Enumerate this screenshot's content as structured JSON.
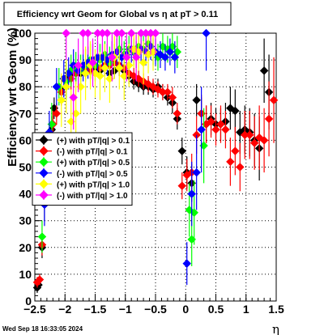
{
  "chart_data": {
    "type": "scatter",
    "title": "Efficiency wrt Geom for Global vs η at pT > 0.11",
    "ylabel": "Efficiency wrt Geom (%)",
    "xlabel": "η",
    "xlim": [
      -2.5,
      1.5
    ],
    "ylim": [
      0,
      100
    ],
    "xticks": [
      "−2.5",
      "−2",
      "−1.5",
      "−1",
      "−0.5",
      "0",
      "0.5",
      "1",
      "1.5"
    ],
    "yticks": [
      "0",
      "10",
      "20",
      "30",
      "40",
      "50",
      "60",
      "70",
      "80",
      "90",
      "100"
    ],
    "grid": true,
    "legend_position": "middle-left",
    "timestamp": "Wed Sep 18 16:33:05 2024",
    "series": [
      {
        "name": "(+) with pT/|q| > 0.1",
        "color": "#000000",
        "marker": "diamond",
        "points": [
          [
            -2.46,
            5,
            2
          ],
          [
            -2.44,
            6,
            2
          ],
          [
            -2.38,
            20,
            4
          ],
          [
            -2.34,
            36,
            6
          ],
          [
            -2.22,
            64,
            5
          ],
          [
            -2.18,
            72,
            4
          ],
          [
            -2.06,
            79,
            5
          ],
          [
            -1.98,
            83,
            4
          ],
          [
            -1.9,
            85,
            4
          ],
          [
            -1.82,
            86,
            3
          ],
          [
            -1.74,
            85,
            3
          ],
          [
            -1.66,
            87,
            3
          ],
          [
            -1.58,
            86,
            3
          ],
          [
            -1.5,
            87,
            3
          ],
          [
            -1.42,
            86,
            3
          ],
          [
            -1.34,
            87,
            3
          ],
          [
            -1.26,
            85,
            3
          ],
          [
            -1.18,
            86,
            3
          ],
          [
            -1.1,
            87,
            3
          ],
          [
            -1.02,
            86,
            3
          ],
          [
            -0.94,
            84,
            3
          ],
          [
            -0.86,
            82,
            3
          ],
          [
            -0.78,
            81,
            3
          ],
          [
            -0.7,
            80,
            3
          ],
          [
            -0.62,
            80,
            3
          ],
          [
            -0.54,
            79,
            3
          ],
          [
            -0.46,
            80,
            3
          ],
          [
            -0.38,
            78,
            3
          ],
          [
            -0.3,
            76,
            3
          ],
          [
            -0.22,
            74,
            4
          ],
          [
            -0.14,
            68,
            4
          ],
          [
            -0.06,
            56,
            5
          ],
          [
            0.02,
            48,
            6
          ],
          [
            0.1,
            44,
            7
          ],
          [
            0.18,
            75,
            6
          ],
          [
            0.26,
            70,
            6
          ],
          [
            0.34,
            66,
            7
          ],
          [
            0.42,
            68,
            6
          ],
          [
            0.5,
            66,
            6
          ],
          [
            0.58,
            66,
            6
          ],
          [
            0.66,
            67,
            7
          ],
          [
            0.74,
            72,
            8
          ],
          [
            0.82,
            71,
            8
          ],
          [
            0.9,
            63,
            8
          ],
          [
            0.98,
            64,
            9
          ],
          [
            1.06,
            63,
            9
          ],
          [
            1.14,
            60,
            10
          ],
          [
            1.22,
            57,
            12
          ],
          [
            1.3,
            86,
            12
          ],
          [
            1.38,
            78,
            14
          ]
        ]
      },
      {
        "name": "(-) with pT/|q| > 0.1",
        "color": "#ff0000",
        "marker": "diamond",
        "points": [
          [
            -2.46,
            7,
            2
          ],
          [
            -2.42,
            8,
            2
          ],
          [
            -2.38,
            21,
            4
          ],
          [
            -2.3,
            45,
            6
          ],
          [
            -2.2,
            66,
            5
          ],
          [
            -2.14,
            70,
            4
          ],
          [
            -2.06,
            78,
            5
          ],
          [
            -1.98,
            80,
            4
          ],
          [
            -1.9,
            83,
            4
          ],
          [
            -1.82,
            85,
            3
          ],
          [
            -1.74,
            86,
            3
          ],
          [
            -1.66,
            87,
            3
          ],
          [
            -1.58,
            86,
            3
          ],
          [
            -1.5,
            88,
            3
          ],
          [
            -1.42,
            87,
            3
          ],
          [
            -1.34,
            88,
            3
          ],
          [
            -1.26,
            88,
            3
          ],
          [
            -1.18,
            89,
            3
          ],
          [
            -1.1,
            88,
            3
          ],
          [
            -1.02,
            87,
            3
          ],
          [
            -0.94,
            85,
            3
          ],
          [
            -0.86,
            84,
            3
          ],
          [
            -0.78,
            83,
            3
          ],
          [
            -0.7,
            82,
            3
          ],
          [
            -0.62,
            81,
            3
          ],
          [
            -0.54,
            80,
            3
          ],
          [
            -0.46,
            79,
            3
          ],
          [
            -0.38,
            78,
            3
          ],
          [
            -0.3,
            78,
            3
          ],
          [
            -0.22,
            76,
            4
          ],
          [
            -0.14,
            70,
            4
          ],
          [
            -0.06,
            43,
            5
          ],
          [
            0.02,
            47,
            6
          ],
          [
            0.1,
            48,
            7
          ],
          [
            0.18,
            62,
            7
          ],
          [
            0.26,
            70,
            7
          ],
          [
            0.34,
            66,
            7
          ],
          [
            0.42,
            67,
            6
          ],
          [
            0.5,
            64,
            6
          ],
          [
            0.58,
            66,
            7
          ],
          [
            0.66,
            64,
            7
          ],
          [
            0.74,
            52,
            9
          ],
          [
            0.82,
            56,
            9
          ],
          [
            0.9,
            50,
            9
          ],
          [
            0.98,
            62,
            9
          ],
          [
            1.06,
            62,
            9
          ],
          [
            1.14,
            59,
            10
          ],
          [
            1.22,
            61,
            12
          ],
          [
            1.3,
            60,
            12
          ],
          [
            1.38,
            68,
            14
          ],
          [
            1.46,
            75,
            16
          ]
        ]
      },
      {
        "name": "(+) with pT/|q| > 0.5",
        "color": "#00ff00",
        "marker": "diamond",
        "points": [
          [
            -2.38,
            24,
            6
          ],
          [
            -2.22,
            66,
            8
          ],
          [
            -2.1,
            80,
            7
          ],
          [
            -1.98,
            82,
            7
          ],
          [
            -1.9,
            86,
            6
          ],
          [
            -1.82,
            87,
            6
          ],
          [
            -1.74,
            86,
            6
          ],
          [
            -1.66,
            88,
            6
          ],
          [
            -1.58,
            90,
            6
          ],
          [
            -1.5,
            88,
            6
          ],
          [
            -1.42,
            90,
            6
          ],
          [
            -1.34,
            92,
            5
          ],
          [
            -1.26,
            89,
            6
          ],
          [
            -1.18,
            91,
            5
          ],
          [
            -1.1,
            94,
            5
          ],
          [
            -1.02,
            92,
            5
          ],
          [
            -0.94,
            94,
            5
          ],
          [
            -0.86,
            93,
            5
          ],
          [
            -0.78,
            95,
            5
          ],
          [
            -0.7,
            94,
            5
          ],
          [
            -0.62,
            96,
            5
          ],
          [
            -0.54,
            93,
            5
          ],
          [
            -0.46,
            91,
            5
          ],
          [
            -0.38,
            95,
            5
          ],
          [
            -0.3,
            94,
            5
          ],
          [
            -0.22,
            95,
            5
          ],
          [
            -0.14,
            93,
            6
          ],
          [
            0.06,
            34,
            10
          ],
          [
            0.1,
            23,
            10
          ],
          [
            0.14,
            33,
            12
          ],
          [
            0.3,
            58,
            14
          ]
        ]
      },
      {
        "name": "(-) with pT/|q| > 0.5",
        "color": "#0000ff",
        "marker": "diamond",
        "points": [
          [
            -2.34,
            36,
            8
          ],
          [
            -2.26,
            63,
            8
          ],
          [
            -2.14,
            80,
            7
          ],
          [
            -2.02,
            83,
            7
          ],
          [
            -1.94,
            85,
            6
          ],
          [
            -1.86,
            88,
            6
          ],
          [
            -1.78,
            86,
            6
          ],
          [
            -1.7,
            88,
            6
          ],
          [
            -1.62,
            89,
            6
          ],
          [
            -1.54,
            90,
            6
          ],
          [
            -1.46,
            91,
            6
          ],
          [
            -1.38,
            91,
            5
          ],
          [
            -1.3,
            90,
            6
          ],
          [
            -1.22,
            92,
            5
          ],
          [
            -1.14,
            93,
            5
          ],
          [
            -1.06,
            91,
            5
          ],
          [
            -0.98,
            92,
            5
          ],
          [
            -0.9,
            94,
            5
          ],
          [
            -0.82,
            92,
            5
          ],
          [
            -0.74,
            94,
            5
          ],
          [
            -0.66,
            93,
            5
          ],
          [
            -0.58,
            95,
            5
          ],
          [
            -0.5,
            93,
            5
          ],
          [
            -0.42,
            92,
            5
          ],
          [
            -0.34,
            91,
            5
          ],
          [
            -0.26,
            93,
            5
          ],
          [
            -0.18,
            91,
            6
          ],
          [
            0.02,
            14,
            8
          ],
          [
            0.1,
            40,
            12
          ],
          [
            0.18,
            48,
            14
          ],
          [
            0.26,
            64,
            16
          ],
          [
            0.34,
            100,
            14
          ]
        ]
      },
      {
        "name": "(+) with pT/|q| > 1.0",
        "color": "#ffff00",
        "marker": "diamond",
        "points": [
          [
            -2.06,
            75,
            10
          ],
          [
            -1.98,
            80,
            10
          ],
          [
            -1.9,
            67,
            12
          ],
          [
            -1.82,
            70,
            12
          ],
          [
            -1.74,
            80,
            10
          ],
          [
            -1.66,
            85,
            10
          ],
          [
            -1.58,
            88,
            9
          ],
          [
            -1.5,
            85,
            9
          ],
          [
            -1.42,
            84,
            9
          ],
          [
            -1.34,
            87,
            9
          ],
          [
            -1.26,
            83,
            9
          ],
          [
            -1.18,
            91,
            8
          ],
          [
            -1.1,
            87,
            8
          ],
          [
            -1.02,
            84,
            9
          ],
          [
            -0.94,
            88,
            8
          ],
          [
            -0.86,
            94,
            7
          ],
          [
            -0.78,
            93,
            7
          ],
          [
            -0.7,
            89,
            8
          ],
          [
            -0.62,
            92,
            7
          ],
          [
            -0.54,
            93,
            7
          ]
        ]
      },
      {
        "name": "(-) with pT/|q| > 1.0",
        "color": "#ff00ff",
        "marker": "diamond",
        "points": [
          [
            -1.98,
            100,
            10
          ],
          [
            -1.86,
            76,
            12
          ],
          [
            -1.78,
            88,
            10
          ],
          [
            -1.7,
            100,
            8
          ],
          [
            -1.62,
            100,
            8
          ],
          [
            -1.54,
            89,
            9
          ],
          [
            -1.46,
            100,
            8
          ],
          [
            -1.38,
            100,
            8
          ],
          [
            -1.3,
            100,
            8
          ],
          [
            -1.22,
            91,
            9
          ],
          [
            -1.14,
            100,
            8
          ],
          [
            -1.06,
            100,
            8
          ],
          [
            -0.98,
            91,
            9
          ],
          [
            -0.9,
            100,
            8
          ],
          [
            -0.82,
            91,
            9
          ],
          [
            -0.74,
            100,
            8
          ],
          [
            -0.66,
            100,
            8
          ],
          [
            -0.58,
            100,
            8
          ],
          [
            -0.5,
            100,
            8
          ]
        ]
      }
    ]
  }
}
